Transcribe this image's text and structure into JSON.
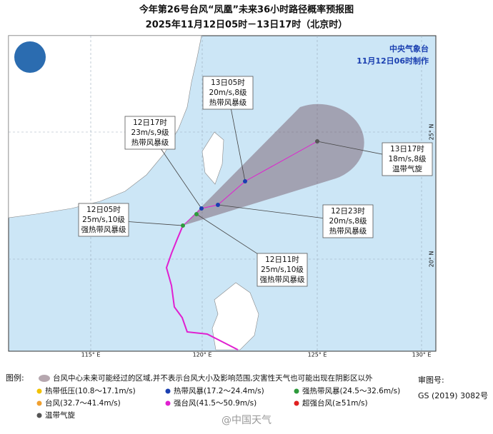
{
  "title": "今年第26号台风“凤凰”未来36小时路径概率预报图",
  "subtitle": "2025年11月12日05时－13日17时（北京时）",
  "agency": {
    "name": "中央气象台",
    "issued": "11月12日06时制作"
  },
  "map": {
    "lon_labels": [
      "115° E",
      "120° E",
      "125° E",
      "130° E"
    ],
    "lat_labels": [
      "25° N",
      "20° N"
    ]
  },
  "forecasts": [
    {
      "time": "13日05时",
      "wind": "20m/s,8级",
      "category": "热带风暴级"
    },
    {
      "time": "12日17时",
      "wind": "23m/s,9级",
      "category": "热带风暴级"
    },
    {
      "time": "13日17时",
      "wind": "18m/s,8级",
      "category": "温带气旋"
    },
    {
      "time": "12日23时",
      "wind": "20m/s,8级",
      "category": "热带风暴级"
    },
    {
      "time": "12日05时",
      "wind": "25m/s,10级",
      "category": "强热带风暴级"
    },
    {
      "time": "12日11时",
      "wind": "25m/s,10级",
      "category": "强热带风暴级"
    }
  ],
  "legend": {
    "heading": "图例:",
    "cone": "台风中心未来可能经过的区域,并不表示台风大小及影响范围,灾害性天气也可能出现在阴影区以外",
    "items": [
      {
        "label": "热带低压(10.8～17.1m/s)",
        "color": "#f2c200"
      },
      {
        "label": "热带风暴(17.2～24.4m/s)",
        "color": "#1a3fb0"
      },
      {
        "label": "强热带风暴(24.5～32.6m/s)",
        "color": "#2e9a3c"
      },
      {
        "label": "台风(32.7～41.4m/s)",
        "color": "#f0a030"
      },
      {
        "label": "强台风(41.5～50.9m/s)",
        "color": "#e020d0"
      },
      {
        "label": "超强台风(≥51m/s)",
        "color": "#e02020"
      },
      {
        "label": "温带气旋",
        "color": "#555555"
      }
    ]
  },
  "review": {
    "label": "审图号:",
    "number": "GS (2019) 3082号"
  },
  "watermark": "@中国天气"
}
